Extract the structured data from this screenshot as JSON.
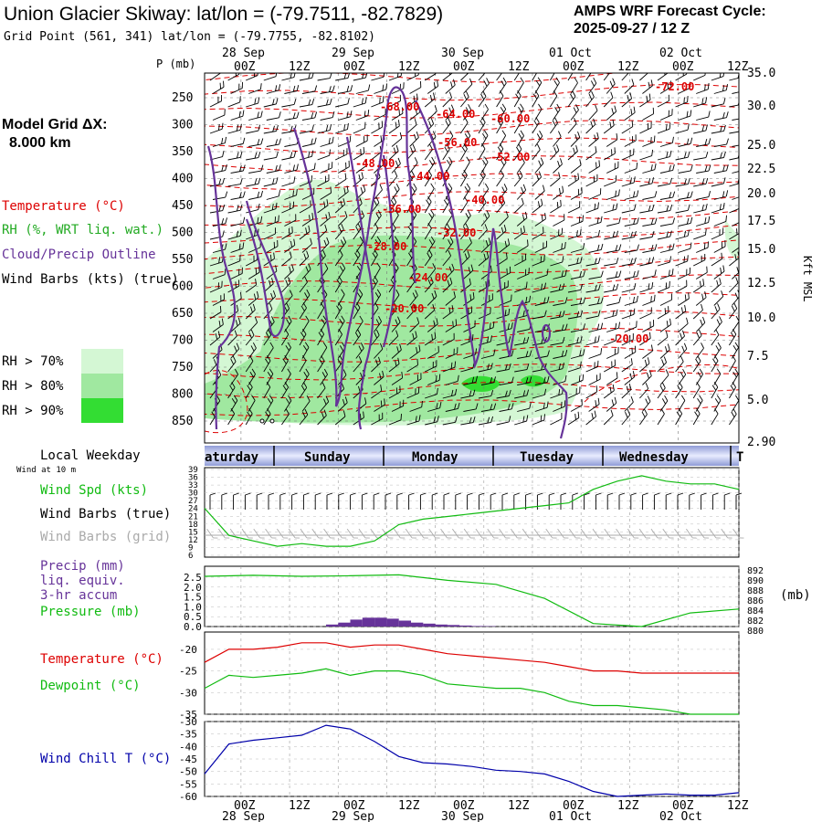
{
  "header": {
    "title": "Union Glacier Skiway:  lat/lon = (-79.7511, -82.7829)",
    "subtitle": "Grid Point (561, 341) lat/lon = (-79.7755, -82.8102)",
    "cycle_line1": "AMPS WRF Forecast Cycle:",
    "cycle_line2": "2025-09-27 / 12  Z"
  },
  "model": {
    "label": "Model Grid ΔX:",
    "value": "8.000 km"
  },
  "legend": {
    "temperature": "Temperature (°C)",
    "rh": "RH (%, WRT liq. wat.)",
    "cloud": "Cloud/Precip Outline",
    "wind": "Wind Barbs (kts) (true)",
    "rh70": "RH > 70%",
    "rh80": "RH > 80%",
    "rh90": "RH > 90%"
  },
  "colors": {
    "temperature": "#dd0000",
    "rh": "#22aa22",
    "cloud": "#663399",
    "rh70": "#d4f7d4",
    "rh80": "#a0e8a0",
    "rh90": "#33dd33",
    "wind_spd": "#11bb11",
    "wind_grid": "#aaaaaa",
    "precip": "#663399",
    "pressure": "#11bb11",
    "dewpoint": "#11bb11",
    "windchill": "#0000aa",
    "weekday_band": "#4a5aa8"
  },
  "time_axis": {
    "ticks": [
      "00Z",
      "12Z",
      "00Z",
      "12Z",
      "00Z",
      "12Z",
      "00Z",
      "12Z",
      "00Z",
      "12Z"
    ],
    "days": [
      "28 Sep",
      "29 Sep",
      "30 Sep",
      "01 Oct",
      "02 Oct"
    ]
  },
  "weekdays": {
    "label": "Local Weekday",
    "days": [
      "aturday",
      "Sunday",
      "Monday",
      "Tuesday",
      "Wednesday",
      "T"
    ]
  },
  "chart_data": [
    {
      "type": "heatmap",
      "title": "Vertical cross-section: temperature, RH, cloud outline, wind barbs",
      "ylabel": "P (mb)",
      "ylabel_right": "Kft MSL",
      "pressure_ticks": [
        250,
        300,
        350,
        400,
        450,
        500,
        550,
        600,
        650,
        700,
        750,
        800,
        850
      ],
      "kft_ticks": [
        "35.0",
        "30.0",
        "25.0",
        "22.5",
        "20.0",
        "17.5",
        "15.0",
        "12.5",
        "10.0",
        "7.5",
        "5.0",
        "2.90"
      ],
      "temp_labels": [
        "-72.00",
        "-68.00",
        "-64.00",
        "-60.00",
        "-56.00",
        "-52.00",
        "-48.00",
        "-44.00",
        "-40.00",
        "-36.00",
        "-32.00",
        "-28.00",
        "-24.00",
        "-20.00",
        "-20.00"
      ]
    },
    {
      "type": "line",
      "title": "Wind Spd (kts)",
      "labels": {
        "wind_at": "Wind at 10 m",
        "spd": "Wind Spd (kts)",
        "barbs_true": "Wind Barbs (true)",
        "barbs_grid": "Wind Barbs (grid)"
      },
      "yticks": [
        "39",
        "36",
        "33",
        "30",
        "27",
        "24",
        "21",
        "18",
        "15",
        "12",
        "9",
        "6"
      ],
      "ylim": [
        6,
        39
      ],
      "x_hours": [
        0,
        6,
        12,
        18,
        24,
        30,
        36,
        42,
        48,
        54,
        60,
        66,
        72,
        78,
        84,
        90,
        96,
        102,
        108,
        114,
        120,
        126,
        132
      ],
      "values": [
        24,
        14,
        12,
        10,
        11,
        10,
        10,
        12,
        18,
        20,
        21,
        22,
        23,
        24,
        25,
        26,
        31,
        34,
        36,
        34,
        33,
        33,
        31
      ]
    },
    {
      "type": "line",
      "title": "Precip (mm) / Pressure (mb)",
      "labels": {
        "precip": "Precip (mm)",
        "liq": "liq. equiv.",
        "accum": "3-hr accum",
        "pressure": "Pressure (mb)",
        "mb": "(mb)"
      },
      "precip_yticks": [
        "2.5",
        "2.0",
        "1.5",
        "1.0",
        "0.5",
        "0.0"
      ],
      "pressure_yticks": [
        "892",
        "890",
        "888",
        "886",
        "884",
        "882",
        "880"
      ],
      "pressure_x_hours": [
        0,
        12,
        24,
        36,
        48,
        60,
        72,
        84,
        96,
        108,
        120,
        132
      ],
      "pressure_values": [
        890.0,
        890.2,
        890.0,
        890.1,
        890.3,
        889.2,
        888.4,
        885.6,
        880.6,
        880.0,
        882.7,
        883.5
      ],
      "precip_x_hours": [
        30,
        33,
        36,
        39,
        42,
        45,
        48,
        51,
        54,
        57,
        60,
        63,
        66,
        69
      ],
      "precip_values": [
        0.1,
        0.2,
        0.35,
        0.45,
        0.45,
        0.4,
        0.3,
        0.2,
        0.15,
        0.1,
        0.08,
        0.05,
        0.03,
        0.02
      ]
    },
    {
      "type": "line",
      "title": "Temperature / Dewpoint (°C)",
      "labels": {
        "temperature": "Temperature (°C)",
        "dewpoint": "Dewpoint (°C)"
      },
      "yticks": [
        "-20",
        "-25",
        "-30",
        "-35"
      ],
      "ylim": [
        -35,
        -16
      ],
      "x_hours": [
        0,
        6,
        12,
        18,
        24,
        30,
        36,
        42,
        48,
        54,
        60,
        66,
        72,
        78,
        84,
        90,
        96,
        102,
        108,
        114,
        120,
        126,
        132
      ],
      "temperature": [
        -23,
        -20,
        -20,
        -19.5,
        -18.5,
        -18.5,
        -19.5,
        -19,
        -19,
        -20,
        -21,
        -21.5,
        -22,
        -22.5,
        -23,
        -24,
        -25,
        -25,
        -25.5,
        -25.5,
        -25.5,
        -25.5,
        -25.5
      ],
      "dewpoint": [
        -29,
        -26,
        -26.5,
        -26,
        -25.5,
        -24.5,
        -26,
        -25,
        -25,
        -26,
        -28,
        -28.5,
        -29,
        -29,
        -30,
        -32,
        -33,
        -33,
        -33.5,
        -34,
        -35,
        -35,
        -35
      ]
    },
    {
      "type": "line",
      "title": "Wind Chill T (°C)",
      "labels": {
        "windchill": "Wind Chill T (°C)"
      },
      "yticks": [
        "-30",
        "-35",
        "-40",
        "-45",
        "-50",
        "-55",
        "-60"
      ],
      "ylim": [
        -60,
        -30
      ],
      "x_hours": [
        0,
        6,
        12,
        18,
        24,
        30,
        36,
        42,
        48,
        54,
        60,
        66,
        72,
        78,
        84,
        90,
        96,
        102,
        108,
        114,
        120,
        126,
        132
      ],
      "values": [
        -51,
        -39,
        -37.5,
        -36.5,
        -35.5,
        -31.5,
        -33,
        -38,
        -44,
        -46.5,
        -47,
        -48,
        -49.5,
        -50,
        -51,
        -54,
        -58,
        -60,
        -59.5,
        -59,
        -59.5,
        -59.5,
        -58.5
      ]
    }
  ]
}
